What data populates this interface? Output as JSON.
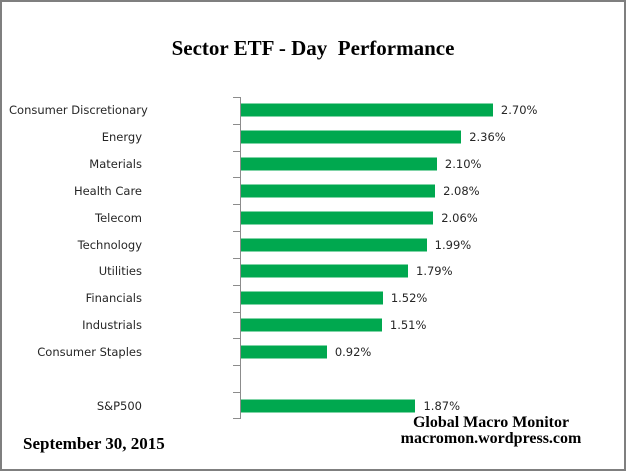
{
  "title": "Sector ETF - Day  Performance",
  "footer": {
    "date": "September 30, 2015",
    "credit_line1": "Global Macro Monitor",
    "credit_line2": "macromon.wordpress.com"
  },
  "colors": {
    "bar": "#00A84F",
    "axis": "#8C8C8C",
    "label_text": "#262626",
    "heading_text": "#000000",
    "border": "#7F7F7F"
  },
  "chart_data": {
    "type": "bar",
    "orientation": "horizontal",
    "title": "Sector ETF - Day  Performance",
    "categories": [
      "Consumer Discretionary",
      "Energy",
      "Materials",
      "Health Care",
      "Telecom",
      "Technology",
      "Utilities",
      "Financials",
      "Industrials",
      "Consumer Staples",
      "",
      "S&P500"
    ],
    "values": [
      2.7,
      2.36,
      2.1,
      2.08,
      2.06,
      1.99,
      1.79,
      1.52,
      1.51,
      0.92,
      null,
      1.87
    ],
    "value_labels": [
      "2.70%",
      "2.36%",
      "2.10%",
      "2.08%",
      "2.06%",
      "1.99%",
      "1.79%",
      "1.52%",
      "1.51%",
      "0.92%",
      "",
      "1.87%"
    ],
    "xlabel": "",
    "ylabel": "",
    "xlim": [
      0,
      3
    ],
    "unit": "percent",
    "grid": false,
    "legend": false,
    "data_labels": true
  }
}
